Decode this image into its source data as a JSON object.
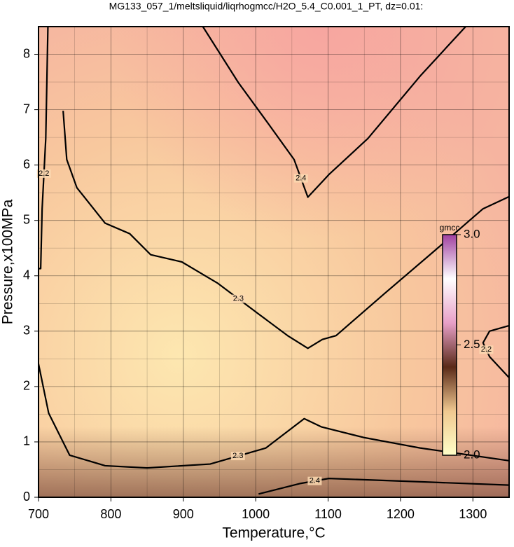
{
  "chart_data": {
    "type": "contour",
    "title": "MG133_057_1/meltsliquid/liqrhogmcc/H2O_5.4_C0.001_1_PT, dz=0.01:",
    "xlabel": "Temperature,°C",
    "ylabel": "Pressure,x100MPa",
    "xlim": [
      700,
      1350
    ],
    "ylim": [
      0,
      8.5
    ],
    "xticks": [
      700,
      800,
      900,
      1000,
      1100,
      1200,
      1300
    ],
    "yticks": [
      0,
      1,
      2,
      3,
      4,
      5,
      6,
      7,
      8
    ],
    "grid": true,
    "line_color": "#000000",
    "contours": [
      {
        "level": 2.4,
        "x": [
          927,
          976,
          1015,
          1053,
          1072,
          1102,
          1155,
          1228,
          1290
        ],
        "y": [
          8.5,
          7.49,
          6.79,
          6.1,
          5.42,
          5.84,
          6.48,
          7.62,
          8.5
        ]
      },
      {
        "level": 2.3,
        "x": [
          734,
          739,
          753,
          792,
          826,
          855,
          898,
          947,
          1005,
          1044,
          1072,
          1092,
          1111,
          1178,
          1246,
          1314,
          1350
        ],
        "y": [
          6.98,
          6.1,
          5.59,
          4.95,
          4.76,
          4.38,
          4.25,
          3.87,
          3.3,
          2.92,
          2.69,
          2.85,
          2.92,
          3.68,
          4.44,
          5.21,
          5.43
        ]
      },
      {
        "level": 2.3,
        "x": [
          700,
          714,
          743,
          792,
          850,
          937,
          1014,
          1067,
          1091,
          1149,
          1227,
          1350
        ],
        "y": [
          2.41,
          1.52,
          0.76,
          0.57,
          0.53,
          0.6,
          0.89,
          1.42,
          1.27,
          1.08,
          0.89,
          0.66
        ]
      },
      {
        "level": 2.4,
        "x": [
          1004,
          1062,
          1101,
          1227,
          1350
        ],
        "y": [
          0.06,
          0.25,
          0.34,
          0.28,
          0.22
        ]
      },
      {
        "level": 2.2,
        "x": [
          713,
          710,
          705,
          703,
          700
        ],
        "y": [
          8.5,
          6.48,
          5.21,
          4.13,
          4.13
        ]
      },
      {
        "level": 2.2,
        "x": [
          1350,
          1323,
          1314,
          1323,
          1350
        ],
        "y": [
          2.16,
          2.54,
          2.79,
          3.0,
          3.1
        ]
      }
    ],
    "colorbar": {
      "label": "gmcc",
      "clim": [
        2.0,
        3.0
      ],
      "ticks": [
        {
          "value": 2.0,
          "label": "2.0"
        },
        2.5,
        {
          "value": 3.0,
          "label": "3.0"
        }
      ],
      "colors": [
        "#ffffc8",
        "#f0c890",
        "#5a2a18",
        "#e8a0c8",
        "#ffffff",
        "#a040a0"
      ]
    }
  }
}
